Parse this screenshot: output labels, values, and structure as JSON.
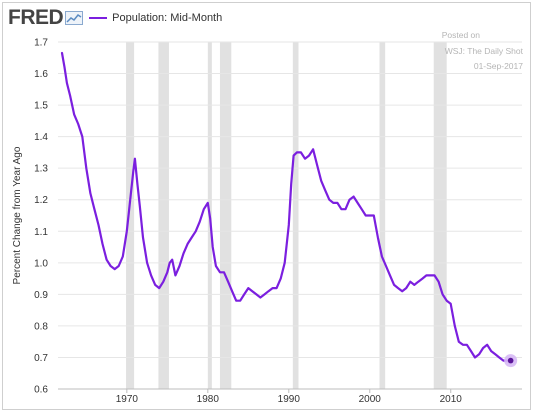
{
  "header": {
    "logo_text": "FRED",
    "legend_label": "Population: Mid-Month"
  },
  "watermark": {
    "line1": "Posted on",
    "line2": "WSJ: The Daily Shot",
    "line3": "01-Sep-2017"
  },
  "colors": {
    "series": "#7b1fdf",
    "recession": "#e1e1e1",
    "endpoint_halo": "#d6b8f5",
    "logo_accent": "#5a8bc2"
  },
  "chart_data": {
    "type": "line",
    "title": "",
    "xlabel": "",
    "ylabel": "Percent Change from Year Ago",
    "xlim": [
      1961.5,
      2018.8
    ],
    "ylim": [
      0.6,
      1.7
    ],
    "x_ticks": [
      1970,
      1980,
      1990,
      2000,
      2010
    ],
    "x_tick_labels": [
      "1970",
      "1980",
      "1990",
      "2000",
      "2010"
    ],
    "y_ticks": [
      0.6,
      0.7,
      0.8,
      0.9,
      1.0,
      1.1,
      1.2,
      1.3,
      1.4,
      1.5,
      1.6,
      1.7
    ],
    "y_tick_labels": [
      "0.6",
      "0.7",
      "0.8",
      "0.9",
      "1.0",
      "1.1",
      "1.2",
      "1.3",
      "1.4",
      "1.5",
      "1.6",
      "1.7"
    ],
    "grid": "horizontal",
    "recessions": [
      [
        1969.9,
        1970.9
      ],
      [
        1973.9,
        1975.2
      ],
      [
        1980.0,
        1980.5
      ],
      [
        1981.5,
        1982.9
      ],
      [
        1990.5,
        1991.2
      ],
      [
        2001.2,
        2001.9
      ],
      [
        2007.9,
        2009.5
      ]
    ],
    "series": [
      {
        "name": "Population: Mid-Month",
        "x": [
          1962.0,
          1962.3,
          1962.6,
          1963.0,
          1963.5,
          1964.0,
          1964.5,
          1965.0,
          1965.5,
          1966.0,
          1966.5,
          1967.0,
          1967.5,
          1968.0,
          1968.5,
          1969.0,
          1969.5,
          1970.0,
          1970.5,
          1970.8,
          1971.0,
          1971.3,
          1971.6,
          1972.0,
          1972.5,
          1973.0,
          1973.5,
          1974.0,
          1974.5,
          1975.0,
          1975.3,
          1975.6,
          1976.0,
          1976.5,
          1977.0,
          1977.5,
          1978.0,
          1978.5,
          1979.0,
          1979.5,
          1980.0,
          1980.3,
          1980.6,
          1981.0,
          1981.5,
          1982.0,
          1982.5,
          1983.0,
          1983.5,
          1984.0,
          1984.5,
          1985.0,
          1985.5,
          1986.0,
          1986.5,
          1987.0,
          1987.5,
          1988.0,
          1988.5,
          1989.0,
          1989.5,
          1990.0,
          1990.3,
          1990.6,
          1991.0,
          1991.5,
          1992.0,
          1992.5,
          1993.0,
          1993.5,
          1994.0,
          1994.5,
          1995.0,
          1995.5,
          1996.0,
          1996.5,
          1997.0,
          1997.5,
          1998.0,
          1998.5,
          1999.0,
          1999.5,
          2000.0,
          2000.5,
          2001.0,
          2001.5,
          2002.0,
          2002.5,
          2003.0,
          2003.5,
          2004.0,
          2004.5,
          2005.0,
          2005.5,
          2006.0,
          2006.5,
          2007.0,
          2007.5,
          2008.0,
          2008.5,
          2009.0,
          2009.5,
          2010.0,
          2010.5,
          2011.0,
          2011.5,
          2012.0,
          2012.5,
          2013.0,
          2013.5,
          2014.0,
          2014.5,
          2015.0,
          2015.5,
          2016.0,
          2016.5,
          2017.0,
          2017.4
        ],
        "y": [
          1.665,
          1.62,
          1.57,
          1.53,
          1.47,
          1.44,
          1.4,
          1.3,
          1.22,
          1.17,
          1.12,
          1.06,
          1.01,
          0.99,
          0.98,
          0.99,
          1.02,
          1.1,
          1.22,
          1.29,
          1.33,
          1.25,
          1.18,
          1.08,
          1.0,
          0.96,
          0.93,
          0.92,
          0.94,
          0.97,
          1.0,
          1.01,
          0.96,
          0.99,
          1.03,
          1.06,
          1.08,
          1.1,
          1.13,
          1.17,
          1.19,
          1.14,
          1.05,
          0.99,
          0.97,
          0.97,
          0.94,
          0.91,
          0.88,
          0.88,
          0.9,
          0.92,
          0.91,
          0.9,
          0.89,
          0.9,
          0.91,
          0.92,
          0.92,
          0.95,
          1.0,
          1.12,
          1.25,
          1.34,
          1.35,
          1.35,
          1.33,
          1.34,
          1.36,
          1.31,
          1.26,
          1.23,
          1.2,
          1.19,
          1.19,
          1.17,
          1.17,
          1.2,
          1.21,
          1.19,
          1.17,
          1.15,
          1.15,
          1.15,
          1.08,
          1.02,
          0.99,
          0.96,
          0.93,
          0.92,
          0.91,
          0.92,
          0.94,
          0.93,
          0.94,
          0.95,
          0.96,
          0.96,
          0.96,
          0.94,
          0.9,
          0.88,
          0.87,
          0.8,
          0.75,
          0.74,
          0.74,
          0.72,
          0.7,
          0.71,
          0.73,
          0.74,
          0.72,
          0.71,
          0.7,
          0.69,
          0.69,
          0.69
        ]
      }
    ]
  }
}
